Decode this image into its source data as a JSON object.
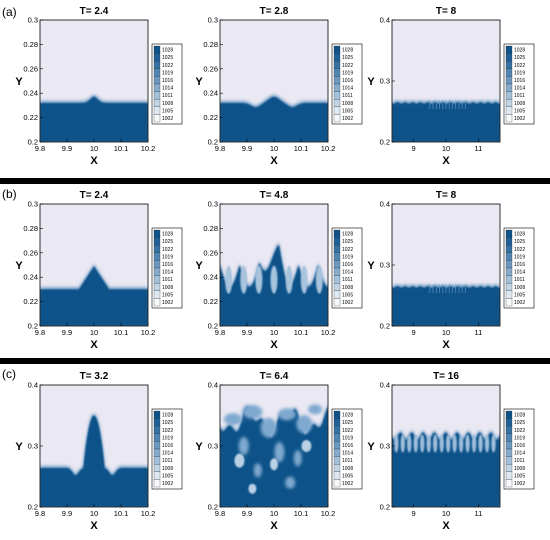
{
  "rows": [
    {
      "label": "(a)",
      "panels": [
        {
          "title": "T= 2.4",
          "xticks": [
            "9.8",
            "9.9",
            "10",
            "10.1",
            "10.2"
          ],
          "yticks": [
            "0.2",
            "0.22",
            "0.24",
            "0.26",
            "0.28",
            "0.3"
          ],
          "xlabel": "X",
          "ylabel": "Y",
          "interface": "bump-small"
        },
        {
          "title": "T= 2.8",
          "xticks": [
            "9.8",
            "9.9",
            "10",
            "10.1",
            "10.2"
          ],
          "yticks": [
            "0.2",
            "0.22",
            "0.24",
            "0.26",
            "0.28",
            "0.3"
          ],
          "xlabel": "X",
          "ylabel": "Y",
          "interface": "wave-small"
        },
        {
          "title": "T= 8",
          "xticks": [
            "9",
            "10",
            "11"
          ],
          "yticks": [
            "0.2",
            "0.3",
            "0.4"
          ],
          "xlabel": "X",
          "ylabel": "Y",
          "interface": "flat-ripples"
        }
      ]
    },
    {
      "label": "(b)",
      "panels": [
        {
          "title": "T= 2.4",
          "xticks": [
            "9.8",
            "9.9",
            "10",
            "10.1",
            "10.2"
          ],
          "yticks": [
            "0.2",
            "0.22",
            "0.24",
            "0.26",
            "0.28",
            "0.3"
          ],
          "xlabel": "X",
          "ylabel": "Y",
          "interface": "bump-large"
        },
        {
          "title": "T= 4.8",
          "xticks": [
            "9.8",
            "9.9",
            "10",
            "10.1",
            "10.2"
          ],
          "yticks": [
            "0.2",
            "0.22",
            "0.24",
            "0.26",
            "0.28",
            "0.3"
          ],
          "xlabel": "X",
          "ylabel": "Y",
          "interface": "fingers"
        },
        {
          "title": "T= 8",
          "xticks": [
            "9",
            "10",
            "11"
          ],
          "yticks": [
            "0.2",
            "0.3",
            "0.4"
          ],
          "xlabel": "X",
          "ylabel": "Y",
          "interface": "flat-ripples"
        }
      ]
    },
    {
      "label": "(c)",
      "panels": [
        {
          "title": "T= 3.2",
          "xticks": [
            "9.8",
            "9.9",
            "10",
            "10.1",
            "10.2"
          ],
          "yticks": [
            "0.2",
            "0.3",
            "0.4"
          ],
          "xlabel": "X",
          "ylabel": "Y",
          "interface": "spike"
        },
        {
          "title": "T= 6.4",
          "xticks": [
            "9.8",
            "9.9",
            "10",
            "10.1",
            "10.2"
          ],
          "yticks": [
            "0.2",
            "0.3",
            "0.4"
          ],
          "xlabel": "X",
          "ylabel": "Y",
          "interface": "turbulent"
        },
        {
          "title": "T= 16",
          "xticks": [
            "9",
            "10",
            "11"
          ],
          "yticks": [
            "0.2",
            "0.3",
            "0.4"
          ],
          "xlabel": "X",
          "ylabel": "Y",
          "interface": "spiky-wide"
        }
      ]
    }
  ],
  "legend": {
    "values": [
      "1028",
      "1025",
      "1022",
      "1019",
      "1016",
      "1014",
      "1011",
      "1008",
      "1005",
      "1002"
    ],
    "colors": [
      "#0d5289",
      "#1e6198",
      "#3572a5",
      "#4f85b3",
      "#6b98c1",
      "#87abcd",
      "#a3c0da",
      "#c1d5e7",
      "#dfe8f2",
      "#f6f8fb"
    ]
  },
  "colors": {
    "heavy": "#0d5289",
    "light": "#eae8f2",
    "separator": "#000000"
  }
}
